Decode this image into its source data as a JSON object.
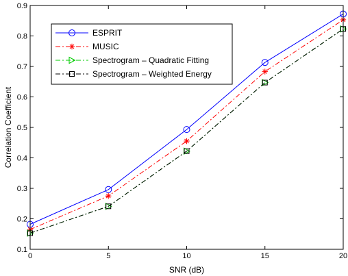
{
  "chart_data": {
    "type": "line",
    "title": "",
    "xlabel": "SNR (dB)",
    "ylabel": "Correlation Coefficient",
    "x": [
      0,
      5,
      10,
      15,
      20
    ],
    "xlim": [
      0,
      20
    ],
    "ylim": [
      0.1,
      0.9
    ],
    "xticks": [
      0,
      5,
      10,
      15,
      20
    ],
    "yticks": [
      0.1,
      0.2,
      0.3,
      0.4,
      0.5,
      0.6,
      0.7,
      0.8,
      0.9
    ],
    "grid": false,
    "legend_position": "top-left",
    "series": [
      {
        "name": "ESPRIT",
        "values": [
          0.182,
          0.296,
          0.493,
          0.713,
          0.872
        ],
        "color": "#0000ff",
        "dash": "solid",
        "marker": "circle"
      },
      {
        "name": "MUSIC",
        "values": [
          0.165,
          0.275,
          0.455,
          0.683,
          0.853
        ],
        "color": "#ff0000",
        "dash": "dashdot",
        "marker": "asterisk"
      },
      {
        "name": "Spectrogram – Quadratic Fitting",
        "values": [
          0.153,
          0.241,
          0.422,
          0.647,
          0.823
        ],
        "color": "#00cc00",
        "dash": "dashdot",
        "marker": "triangle-right"
      },
      {
        "name": "Spectrogram – Weighted Energy",
        "values": [
          0.153,
          0.241,
          0.422,
          0.647,
          0.823
        ],
        "color": "#000000",
        "dash": "dashdot",
        "marker": "square"
      }
    ]
  }
}
